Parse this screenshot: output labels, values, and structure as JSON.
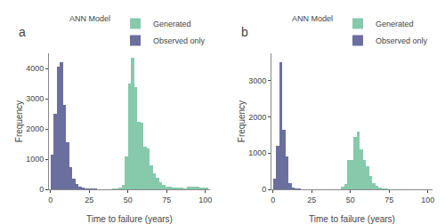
{
  "chart_data": [
    {
      "type": "bar",
      "title": "a",
      "xlabel": "Time to failure (years)",
      "ylabel": "Frequency",
      "legend_title": "ANN Model",
      "legend": "upper right",
      "grid": false,
      "series": [
        {
          "name": "Observed only",
          "color": "#6b6f9e",
          "bins": [
            0,
            2,
            4,
            6,
            8,
            10,
            12,
            14,
            16,
            18,
            20,
            22,
            24,
            26,
            28,
            30
          ],
          "values": [
            1150,
            2500,
            4050,
            4200,
            2800,
            1550,
            750,
            350,
            190,
            80,
            40,
            20,
            5,
            2,
            1
          ]
        },
        {
          "name": "Generated",
          "color": "#86c9ab",
          "bins": [
            40,
            42,
            44,
            46,
            48,
            50,
            52,
            54,
            56,
            58,
            60,
            62,
            64,
            66,
            68,
            70,
            72,
            74,
            76,
            78,
            80,
            82,
            84,
            86,
            88,
            90,
            92,
            94,
            96,
            98,
            100,
            102
          ],
          "values": [
            5,
            10,
            50,
            150,
            1100,
            3500,
            4350,
            3380,
            2250,
            2200,
            1400,
            1350,
            800,
            540,
            380,
            250,
            140,
            95,
            75,
            55,
            50,
            40,
            30,
            20,
            90,
            100,
            95,
            90,
            50,
            40,
            30
          ]
        }
      ],
      "xlim": [
        -1,
        103
      ],
      "xticks": [
        0,
        25,
        50,
        75,
        100
      ],
      "ylim": [
        0,
        4500
      ],
      "yticks": [
        0,
        1000,
        2000,
        3000,
        4000
      ]
    },
    {
      "type": "bar",
      "title": "b",
      "xlabel": "Time to failure (years)",
      "ylabel": "Frequency",
      "legend_title": "ANN Model",
      "legend": "upper right",
      "grid": false,
      "series": [
        {
          "name": "Observed only",
          "color": "#6b6f9e",
          "bins": [
            0,
            2,
            4,
            6,
            8,
            10,
            12,
            14,
            16,
            18
          ],
          "values": [
            300,
            1200,
            3500,
            1650,
            900,
            180,
            40,
            5,
            2
          ]
        },
        {
          "name": "Generated",
          "color": "#86c9ab",
          "bins": [
            44,
            46,
            48,
            50,
            52,
            54,
            56,
            58,
            60,
            62,
            64,
            66,
            68,
            70,
            72,
            74
          ],
          "values": [
            80,
            150,
            800,
            820,
            1450,
            1600,
            1100,
            800,
            640,
            380,
            180,
            90,
            40,
            10,
            5
          ]
        }
      ],
      "xlim": [
        -1,
        103
      ],
      "xticks": [
        0,
        25,
        50,
        75,
        100
      ],
      "ylim": [
        0,
        3750
      ],
      "yticks": [
        0,
        1000,
        2000,
        3000
      ]
    }
  ]
}
